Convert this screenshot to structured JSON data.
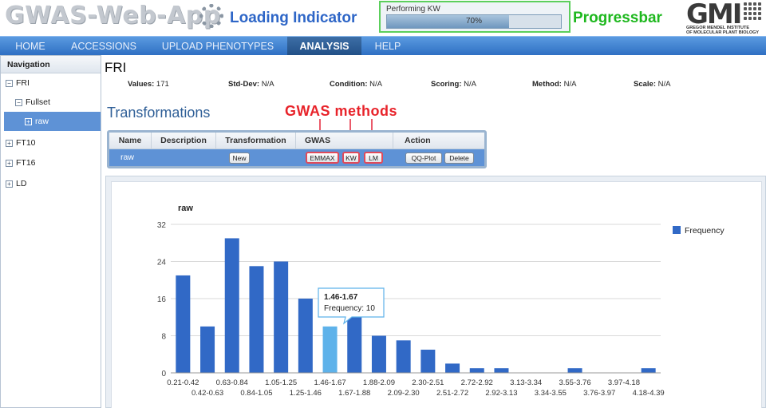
{
  "banner": {
    "app_title": "GWAS-Web-App",
    "loading_label": "Loading Indicator",
    "progress": {
      "caption": "Performing KW",
      "value_text": "70%",
      "value": 0.7
    },
    "progressbar_label": "Progressbar",
    "logo": {
      "letters": "GMI",
      "subtitle_line1": "GREGOR MENDEL INSTITUTE",
      "subtitle_line2": "OF MOLECULAR PLANT BIOLOGY"
    }
  },
  "nav": {
    "items": [
      {
        "label": "HOME",
        "active": false
      },
      {
        "label": "ACCESSIONS",
        "active": false
      },
      {
        "label": "UPLOAD PHENOTYPES",
        "active": false
      },
      {
        "label": "ANALYSIS",
        "active": true
      },
      {
        "label": "HELP",
        "active": false
      }
    ]
  },
  "sidebar": {
    "heading": "Navigation",
    "items": [
      {
        "label": "FRI",
        "toggle": "−"
      },
      {
        "label": "Fullset",
        "toggle": "−"
      },
      {
        "label": "raw",
        "toggle": "+"
      },
      {
        "label": "FT10",
        "toggle": "+"
      },
      {
        "label": "FT16",
        "toggle": "+"
      },
      {
        "label": "LD",
        "toggle": "+"
      }
    ]
  },
  "main": {
    "phenotype_title": "FRI",
    "stats": {
      "values_label": "Values:",
      "values": "171",
      "stddev_label": "Std-Dev:",
      "stddev": "N/A",
      "condition_label": "Condition:",
      "condition": "N/A",
      "scoring_label": "Scoring:",
      "scoring": "N/A",
      "method_label": "Method:",
      "method": "N/A",
      "scale_label": "Scale:",
      "scale": "N/A"
    },
    "section_title": "Transformations",
    "annotation": "GWAS methods",
    "table": {
      "headers": [
        "Name",
        "Description",
        "Transformation",
        "GWAS",
        "Action"
      ],
      "row": {
        "name": "raw",
        "description": "",
        "transformation_button": "New",
        "gwas_buttons": [
          "EMMAX",
          "KW",
          "LM"
        ],
        "action_buttons": [
          "QQ-Plot",
          "Delete"
        ]
      }
    }
  },
  "colors": {
    "bar": "#3169c6",
    "bar_highlight": "#5eb2ea",
    "nav": "#2f70c3",
    "annotation": "#e8232a",
    "progressbar_label": "#1eb81e"
  },
  "chart_data": {
    "type": "bar",
    "title": "raw",
    "xlabel": "",
    "ylabel": "",
    "ylim": [
      0,
      32
    ],
    "yticks": [
      0,
      8,
      16,
      24,
      32
    ],
    "grid": true,
    "legend": "top-right",
    "categories": [
      "0.21-0.42",
      "0.42-0.63",
      "0.63-0.84",
      "0.84-1.05",
      "1.05-1.25",
      "1.25-1.46",
      "1.46-1.67",
      "1.67-1.88",
      "1.88-2.09",
      "2.09-2.30",
      "2.30-2.51",
      "2.51-2.72",
      "2.72-2.92",
      "2.92-3.13",
      "3.13-3.34",
      "3.34-3.55",
      "3.55-3.76",
      "3.76-3.97",
      "3.97-4.18",
      "4.18-4.39"
    ],
    "series": [
      {
        "name": "Frequency",
        "values": [
          21,
          10,
          29,
          23,
          24,
          16,
          10,
          12,
          8,
          7,
          5,
          2,
          1,
          1,
          0,
          0,
          1,
          0,
          0,
          1
        ]
      }
    ],
    "highlight_index": 6,
    "tooltip": {
      "category": "1.46-1.67",
      "text": "Frequency: 10"
    }
  }
}
